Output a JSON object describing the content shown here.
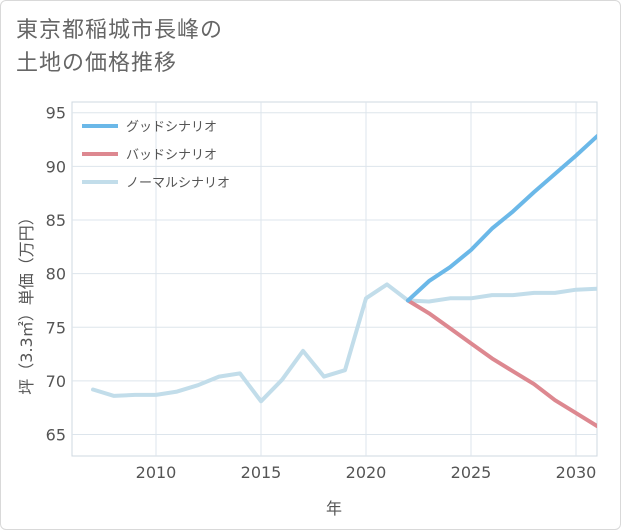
{
  "title_line1": "東京都稲城市長峰の",
  "title_line2": "土地の価格推移",
  "chart_data": {
    "type": "line",
    "title": "東京都稲城市長峰の土地の価格推移",
    "xlabel": "年",
    "ylabel": "坪（3.3㎡）単価（万円）",
    "xlim": [
      2006,
      2031
    ],
    "ylim": [
      63,
      96
    ],
    "xticks": [
      2010,
      2015,
      2020,
      2025,
      2030
    ],
    "yticks": [
      65,
      70,
      75,
      80,
      85,
      90,
      95
    ],
    "legend_position": "top-left",
    "series": [
      {
        "name": "グッドシナリオ",
        "color": "#6bb8e8",
        "x": [
          2022,
          2023,
          2024,
          2025,
          2026,
          2027,
          2028,
          2029,
          2030,
          2031
        ],
        "y": [
          77.5,
          79.3,
          80.6,
          82.2,
          84.2,
          85.8,
          87.6,
          89.3,
          91.0,
          92.8
        ]
      },
      {
        "name": "バッドシナリオ",
        "color": "#dd8890",
        "x": [
          2022,
          2023,
          2024,
          2025,
          2026,
          2027,
          2028,
          2029,
          2030,
          2031
        ],
        "y": [
          77.5,
          76.3,
          74.9,
          73.5,
          72.1,
          70.9,
          69.7,
          68.2,
          67.0,
          65.8
        ]
      },
      {
        "name": "ノーマルシナリオ",
        "color": "#c2ddea",
        "x": [
          2007,
          2008,
          2009,
          2010,
          2011,
          2012,
          2013,
          2014,
          2015,
          2016,
          2017,
          2018,
          2019,
          2020,
          2021,
          2022,
          2023,
          2024,
          2025,
          2026,
          2027,
          2028,
          2029,
          2030,
          2031
        ],
        "y": [
          69.2,
          68.6,
          68.7,
          68.7,
          69.0,
          69.6,
          70.4,
          70.7,
          68.1,
          70.1,
          72.8,
          70.4,
          71.0,
          77.7,
          79.0,
          77.5,
          77.4,
          77.7,
          77.7,
          78.0,
          78.0,
          78.2,
          78.2,
          78.5,
          78.6
        ]
      }
    ]
  }
}
